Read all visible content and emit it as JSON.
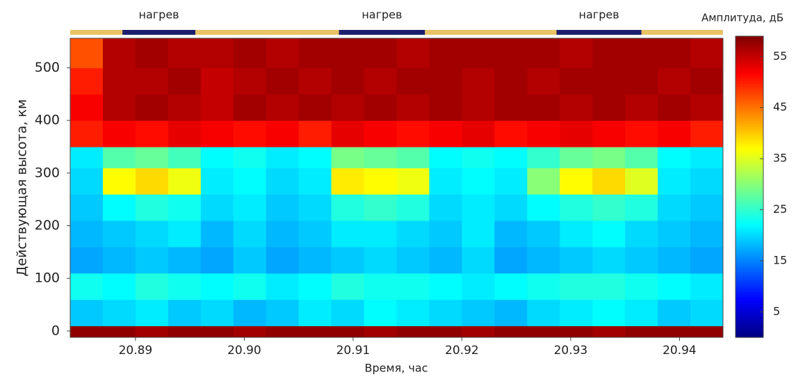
{
  "chart_data": {
    "type": "heatmap",
    "xlabel": "Время, час",
    "ylabel": "Действующая высота, км",
    "colorbar_label": "Амплитуда, дБ",
    "xlim": [
      20.884,
      20.944
    ],
    "ylim": [
      -12,
      556
    ],
    "xticks": [
      20.89,
      {
        "value": 20.9,
        "label": "20.90"
      },
      20.91,
      20.92,
      20.93,
      20.94
    ],
    "yticks": [
      0,
      100,
      200,
      300,
      400,
      500
    ],
    "clim": [
      0,
      59
    ],
    "cticks": [
      5,
      15,
      25,
      35,
      45,
      55
    ],
    "colormap": "jet",
    "heating": [
      {
        "start": 20.8888,
        "end": 20.8955,
        "label": "нагрев"
      },
      {
        "start": 20.9087,
        "end": 20.9166,
        "label": "нагрев"
      },
      {
        "start": 20.9287,
        "end": 20.9365,
        "label": "нагрев"
      }
    ],
    "heating_color": "#1b1f6e",
    "idle_color": "#e9c265",
    "x_bins": [
      20.884,
      20.887,
      20.89,
      20.893,
      20.896,
      20.899,
      20.902,
      20.905,
      20.908,
      20.911,
      20.914,
      20.917,
      20.92,
      20.923,
      20.926,
      20.929,
      20.932,
      20.935,
      20.938,
      20.941,
      20.944
    ],
    "y_bins": [
      -12,
      10,
      60,
      110,
      160,
      210,
      260,
      310,
      350,
      400,
      450,
      500,
      556
    ],
    "z": [
      [
        58,
        58,
        57,
        58,
        58,
        57,
        58,
        58,
        58,
        57,
        58,
        58,
        57,
        58,
        58,
        58,
        57,
        58,
        58,
        58
      ],
      [
        19,
        20,
        21,
        19,
        20,
        18,
        19,
        21,
        20,
        22,
        21,
        20,
        19,
        18,
        20,
        21,
        22,
        21,
        19,
        20
      ],
      [
        23,
        22,
        24,
        23,
        22,
        23,
        21,
        22,
        24,
        23,
        23,
        22,
        21,
        22,
        23,
        24,
        24,
        23,
        22,
        21
      ],
      [
        17,
        18,
        19,
        18,
        17,
        19,
        17,
        18,
        19,
        20,
        19,
        18,
        20,
        17,
        18,
        19,
        20,
        19,
        18,
        17
      ],
      [
        18,
        19,
        20,
        21,
        18,
        20,
        18,
        19,
        21,
        21,
        20,
        19,
        21,
        18,
        19,
        21,
        22,
        20,
        19,
        18
      ],
      [
        19,
        22,
        24,
        23,
        20,
        21,
        19,
        20,
        24,
        25,
        24,
        20,
        21,
        20,
        22,
        24,
        25,
        24,
        20,
        19
      ],
      [
        20,
        37,
        39,
        36,
        21,
        22,
        20,
        21,
        38,
        37,
        36,
        21,
        22,
        21,
        30,
        37,
        39,
        35,
        21,
        20
      ],
      [
        21,
        27,
        28,
        26,
        22,
        23,
        21,
        22,
        29,
        28,
        27,
        22,
        23,
        22,
        25,
        28,
        29,
        27,
        22,
        21
      ],
      [
        50,
        52,
        51,
        53,
        52,
        51,
        52,
        50,
        53,
        52,
        51,
        52,
        53,
        51,
        52,
        53,
        52,
        51,
        52,
        50
      ],
      [
        52,
        56,
        57,
        56,
        55,
        57,
        56,
        57,
        56,
        57,
        56,
        57,
        56,
        57,
        57,
        56,
        57,
        56,
        57,
        56
      ],
      [
        50,
        56,
        56,
        57,
        55,
        56,
        57,
        56,
        57,
        56,
        57,
        57,
        56,
        57,
        56,
        57,
        57,
        57,
        56,
        57
      ],
      [
        47,
        56,
        57,
        56,
        56,
        57,
        56,
        57,
        57,
        57,
        56,
        57,
        57,
        57,
        57,
        56,
        57,
        57,
        57,
        56
      ]
    ]
  }
}
